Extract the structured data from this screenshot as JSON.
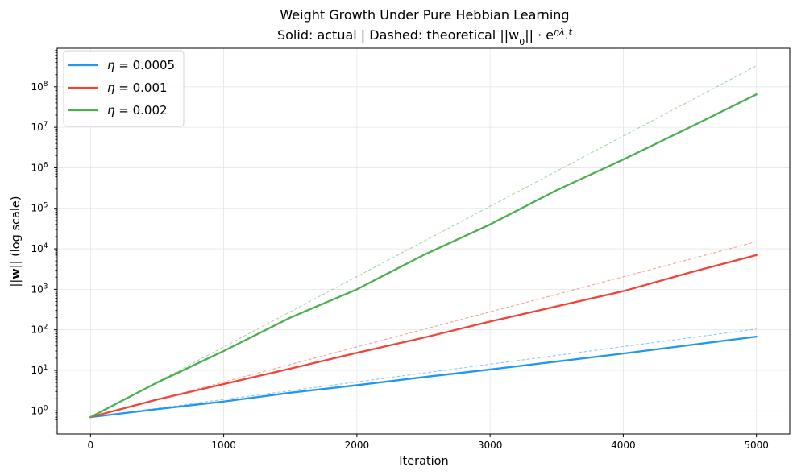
{
  "chart_data": {
    "type": "line",
    "title": "Weight Growth Under Pure Hebbian Learning",
    "subtitle_prefix": "Solid: actual | Dashed: theoretical ||w",
    "subtitle_sub": "0",
    "subtitle_mid": "|| · e",
    "subtitle_sup": "ηλ",
    "subtitle_sup_sub": "1",
    "subtitle_sup_end": "t",
    "xlabel": "Iteration",
    "ylabel_prefix": "||",
    "ylabel_bold": "w",
    "ylabel_suffix": "|| (log scale)",
    "xlim": [
      -250,
      5250
    ],
    "ylim_log10": [
      -0.57,
      8.95
    ],
    "yscale": "log",
    "grid": true,
    "legend_placement": "top-left",
    "x_ticks": [
      0,
      1000,
      2000,
      3000,
      4000,
      5000
    ],
    "x_tick_labels": [
      "0",
      "1000",
      "2000",
      "3000",
      "4000",
      "5000"
    ],
    "y_tick_exponents": [
      0,
      1,
      2,
      3,
      4,
      5,
      6,
      7,
      8
    ],
    "y_tick_base": "10",
    "series": [
      {
        "name_symbol": "η",
        "name_value": " = 0.0005",
        "color": "#2196F3",
        "actual": {
          "x": [
            0,
            500,
            1000,
            1500,
            2000,
            2500,
            3000,
            3500,
            4000,
            4500,
            5000
          ],
          "y": [
            0.7,
            1.1,
            1.7,
            2.8,
            4.3,
            6.8,
            10.5,
            16.5,
            26,
            42,
            68
          ]
        },
        "theoretical": {
          "x": [
            0,
            5000
          ],
          "y": [
            0.7,
            105
          ]
        }
      },
      {
        "name_symbol": "η",
        "name_value": " = 0.001",
        "color": "#F44336",
        "actual": {
          "x": [
            0,
            500,
            1000,
            1500,
            2000,
            2500,
            3000,
            3500,
            4000,
            4500,
            5000
          ],
          "y": [
            0.7,
            1.9,
            4.6,
            11,
            27,
            64,
            160,
            380,
            900,
            2600,
            7000
          ]
        },
        "theoretical": {
          "x": [
            0,
            5000
          ],
          "y": [
            0.7,
            15000
          ]
        }
      },
      {
        "name_symbol": "η",
        "name_value": " = 0.002",
        "color": "#4CAF50",
        "actual": {
          "x": [
            0,
            500,
            1000,
            1500,
            2000,
            2500,
            3000,
            3500,
            4000,
            4500,
            5000
          ],
          "y": [
            0.7,
            5,
            30,
            200,
            1000,
            7000,
            40000,
            280000,
            1600000,
            10000000,
            65000000
          ]
        },
        "theoretical": {
          "x": [
            0,
            5000
          ],
          "y": [
            0.7,
            330000000
          ]
        }
      }
    ]
  }
}
